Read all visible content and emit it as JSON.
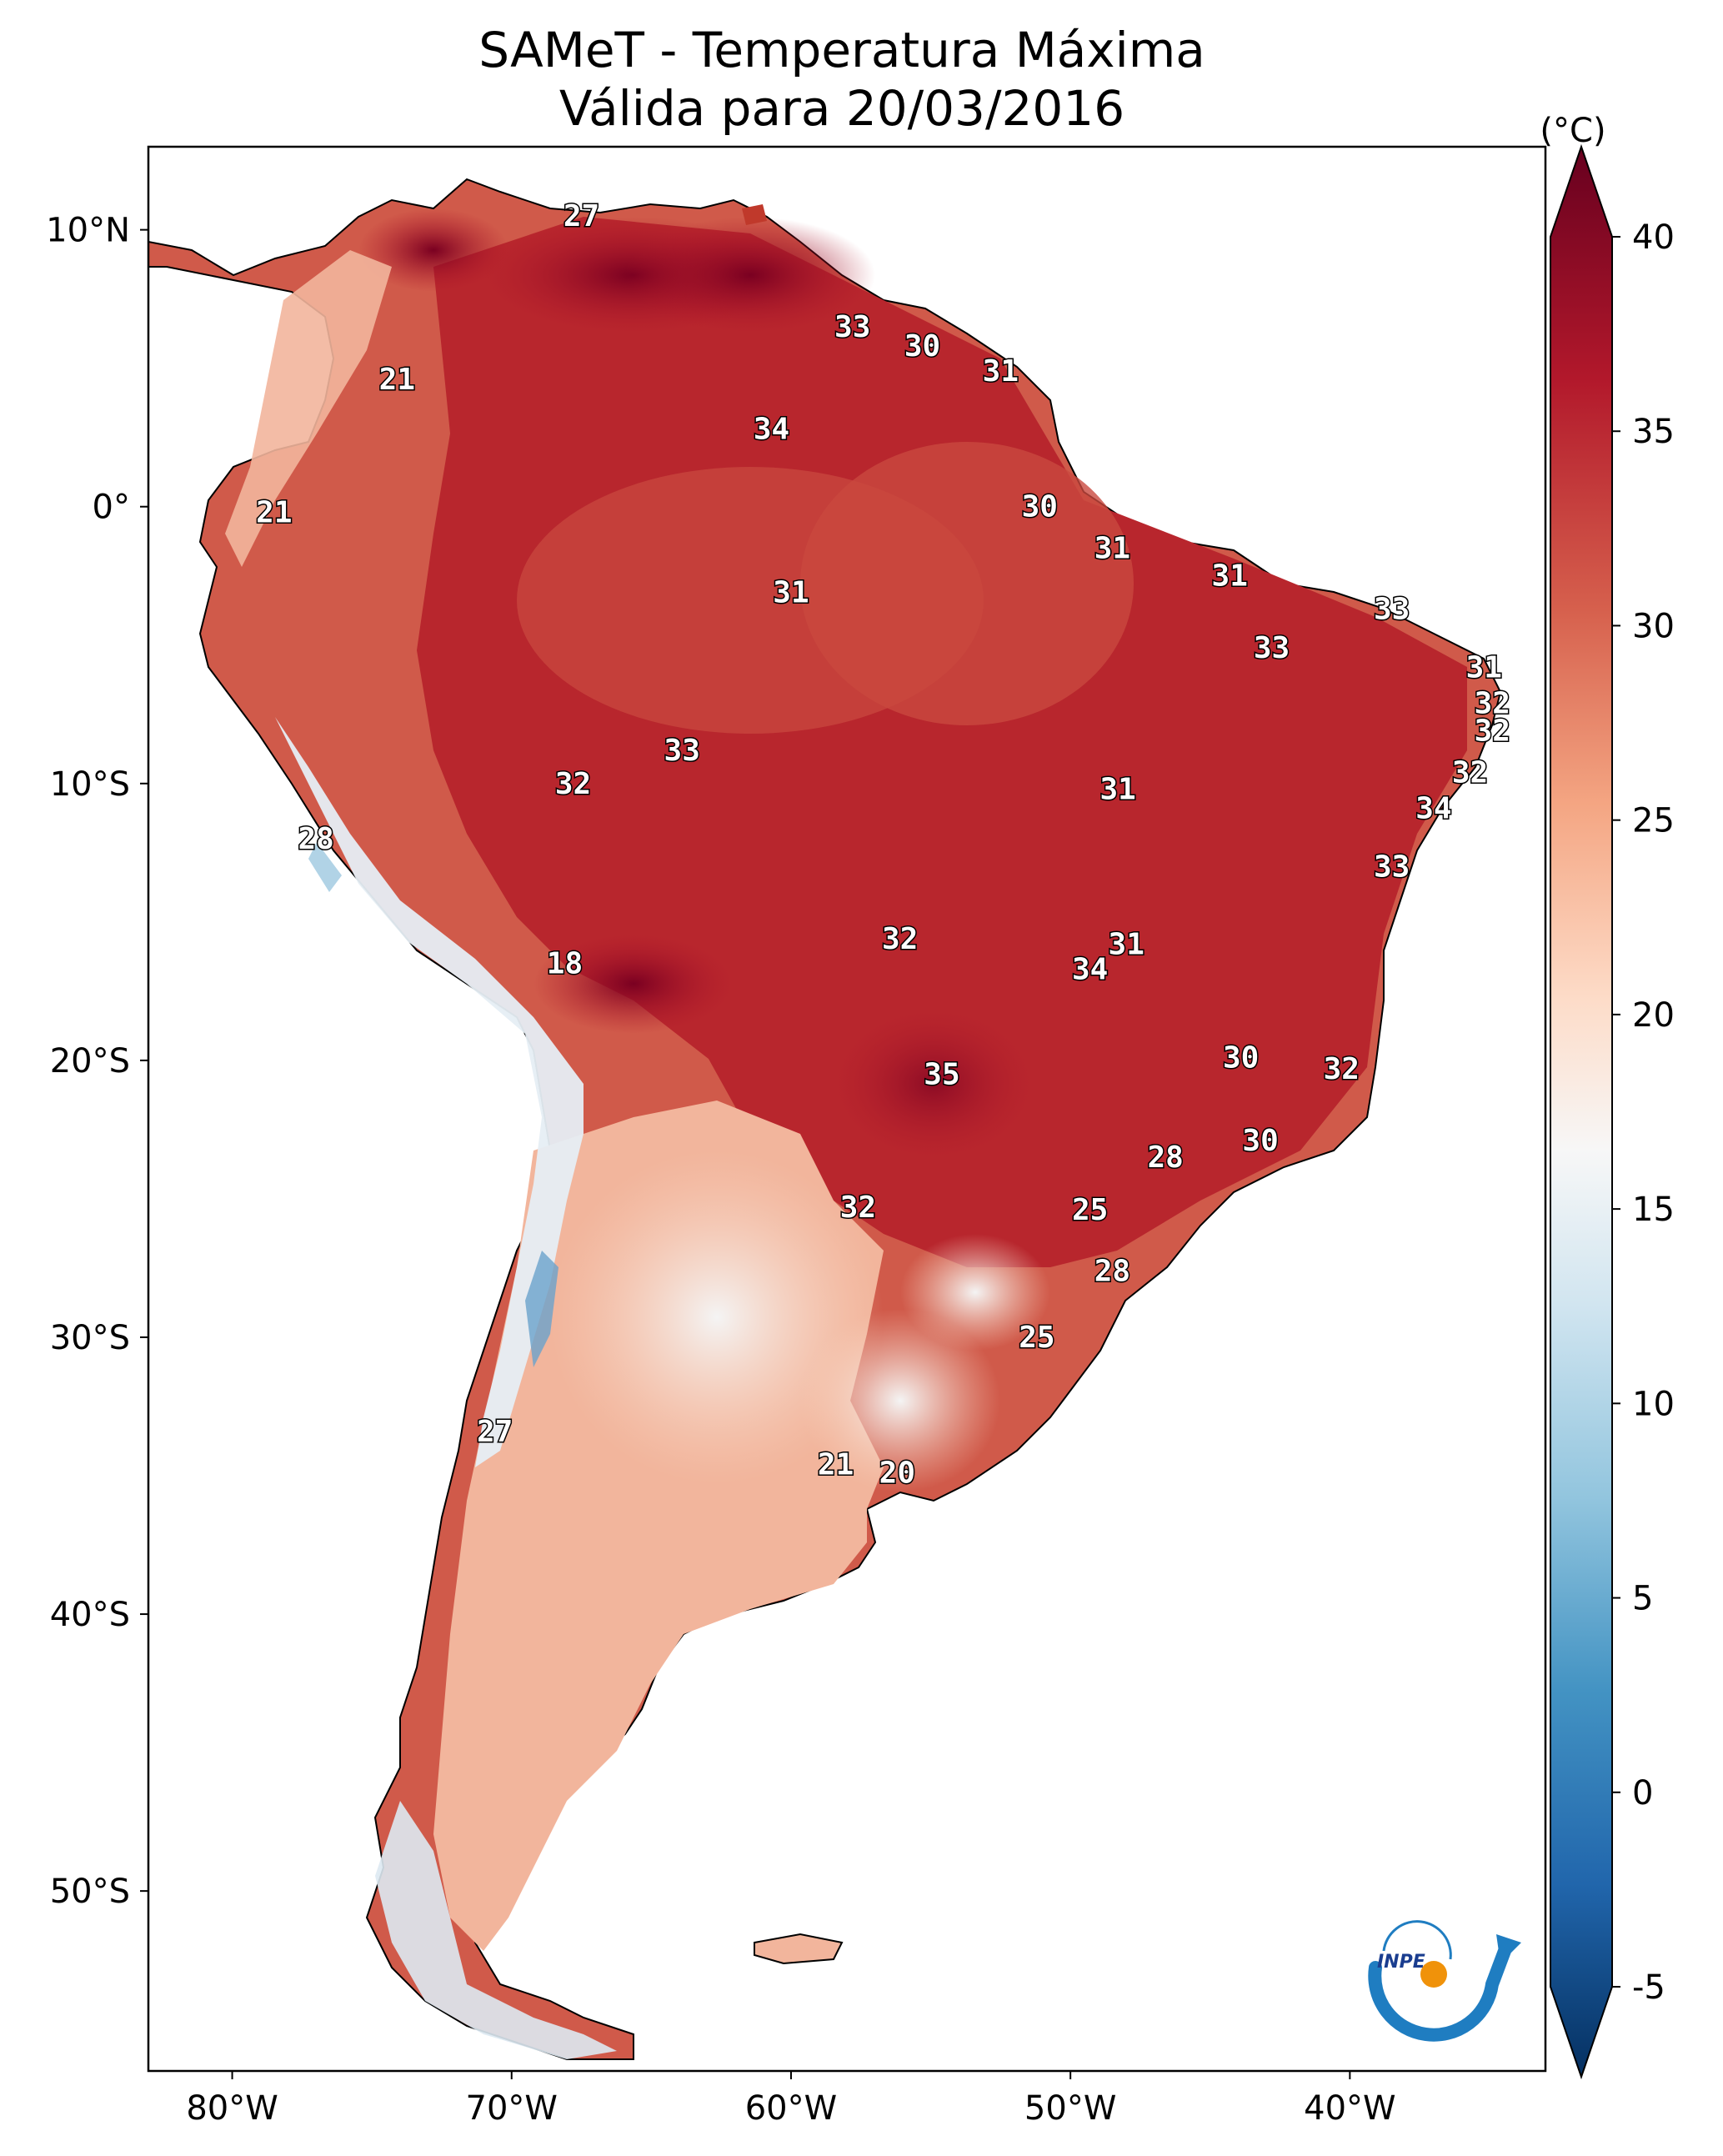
{
  "title": {
    "line1": "SAMeT - Temperatura Máxima",
    "line2": "Válida para 20/03/2016"
  },
  "axes": {
    "lon_labels": [
      "80°W",
      "70°W",
      "60°W",
      "50°W",
      "40°W"
    ],
    "lon_values": [
      -80,
      -70,
      -60,
      -50,
      -40
    ],
    "lat_labels": [
      "10°N",
      "0°",
      "10°S",
      "20°S",
      "30°S",
      "40°S",
      "50°S"
    ],
    "lat_values": [
      10,
      0,
      -10,
      -20,
      -30,
      -40,
      -50
    ],
    "lon_range": [
      -83,
      -33
    ],
    "lat_range": [
      13,
      -56.5
    ]
  },
  "colorbar": {
    "unit_label": "(°C)",
    "tick_labels": [
      "40",
      "35",
      "30",
      "25",
      "20",
      "15",
      "10",
      "5",
      "0",
      "-5"
    ],
    "tick_values": [
      40,
      35,
      30,
      25,
      20,
      15,
      10,
      5,
      0,
      -5
    ],
    "range": [
      -5,
      40
    ],
    "colors": [
      "#053061",
      "#2166ac",
      "#4393c3",
      "#92c5de",
      "#d1e5f0",
      "#f7f7f7",
      "#fddbc7",
      "#f4a582",
      "#d6604d",
      "#b2182b",
      "#67001f"
    ]
  },
  "stations": [
    {
      "value": "27",
      "lon": -67.5,
      "lat": 10.5
    },
    {
      "value": "33",
      "lon": -57.8,
      "lat": 6.5
    },
    {
      "value": "30",
      "lon": -55.3,
      "lat": 5.8
    },
    {
      "value": "31",
      "lon": -52.5,
      "lat": 4.9
    },
    {
      "value": "21",
      "lon": -74.1,
      "lat": 4.6
    },
    {
      "value": "34",
      "lon": -60.7,
      "lat": 2.8
    },
    {
      "value": "21",
      "lon": -78.5,
      "lat": -0.2
    },
    {
      "value": "30",
      "lon": -51.1,
      "lat": 0.0
    },
    {
      "value": "31",
      "lon": -48.5,
      "lat": -1.5
    },
    {
      "value": "31",
      "lon": -44.3,
      "lat": -2.5
    },
    {
      "value": "31",
      "lon": -60.0,
      "lat": -3.1
    },
    {
      "value": "33",
      "lon": -38.5,
      "lat": -3.7
    },
    {
      "value": "33",
      "lon": -42.8,
      "lat": -5.1
    },
    {
      "value": "31",
      "lon": -35.2,
      "lat": -5.8
    },
    {
      "value": "32",
      "lon": -34.9,
      "lat": -7.1
    },
    {
      "value": "32",
      "lon": -34.9,
      "lat": -8.1
    },
    {
      "value": "33",
      "lon": -63.9,
      "lat": -8.8
    },
    {
      "value": "32",
      "lon": -67.8,
      "lat": -10.0
    },
    {
      "value": "31",
      "lon": -48.3,
      "lat": -10.2
    },
    {
      "value": "32",
      "lon": -35.7,
      "lat": -9.6
    },
    {
      "value": "34",
      "lon": -37.0,
      "lat": -10.9
    },
    {
      "value": "28",
      "lon": -77.0,
      "lat": -12.0
    },
    {
      "value": "33",
      "lon": -38.5,
      "lat": -13.0
    },
    {
      "value": "32",
      "lon": -56.1,
      "lat": -15.6
    },
    {
      "value": "31",
      "lon": -48.0,
      "lat": -15.8
    },
    {
      "value": "34",
      "lon": -49.3,
      "lat": -16.7
    },
    {
      "value": "18",
      "lon": -68.1,
      "lat": -16.5
    },
    {
      "value": "30",
      "lon": -43.9,
      "lat": -19.9
    },
    {
      "value": "35",
      "lon": -54.6,
      "lat": -20.5
    },
    {
      "value": "32",
      "lon": -40.3,
      "lat": -20.3
    },
    {
      "value": "30",
      "lon": -43.2,
      "lat": -22.9
    },
    {
      "value": "28",
      "lon": -46.6,
      "lat": -23.5
    },
    {
      "value": "25",
      "lon": -49.3,
      "lat": -25.4
    },
    {
      "value": "32",
      "lon": -57.6,
      "lat": -25.3
    },
    {
      "value": "28",
      "lon": -48.5,
      "lat": -27.6
    },
    {
      "value": "25",
      "lon": -51.2,
      "lat": -30.0
    },
    {
      "value": "27",
      "lon": -70.6,
      "lat": -33.4
    },
    {
      "value": "21",
      "lon": -58.4,
      "lat": -34.6
    },
    {
      "value": "20",
      "lon": -56.2,
      "lat": -34.9
    }
  ],
  "logo": {
    "text": "INPE"
  }
}
